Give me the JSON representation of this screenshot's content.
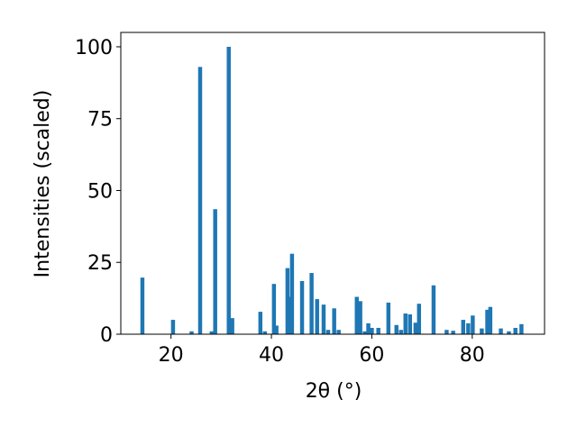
{
  "chart_data": {
    "type": "bar",
    "xlabel": "2θ (°)",
    "ylabel": "Intensities (scaled)",
    "color": "#1f77b4",
    "x": [
      14.3,
      20.4,
      24.1,
      25.8,
      28.1,
      28.8,
      31.5,
      32.2,
      37.8,
      38.7,
      40.5,
      41.0,
      43.2,
      43.5,
      44.1,
      46.1,
      48.0,
      49.1,
      50.4,
      51.3,
      52.5,
      53.4,
      57.0,
      57.7,
      58.6,
      59.3,
      60.0,
      61.3,
      63.3,
      64.9,
      65.8,
      66.7,
      67.6,
      68.7,
      69.4,
      72.3,
      74.9,
      76.2,
      78.2,
      79.2,
      80.1,
      81.9,
      83.0,
      83.6,
      85.7,
      87.3,
      88.6,
      89.8
    ],
    "values": [
      19.7,
      5,
      1,
      93,
      1,
      43.5,
      100,
      5.6,
      7.8,
      1,
      17.5,
      3,
      23,
      13,
      28,
      18.5,
      21.3,
      12.2,
      10.3,
      1.5,
      9,
      1.5,
      13,
      11.5,
      1,
      3.8,
      2.2,
      2.2,
      11,
      3.2,
      1.5,
      7.2,
      6.9,
      4,
      10.6,
      17,
      1.5,
      1.2,
      5,
      3.8,
      6.5,
      2,
      8.5,
      9.5,
      2,
      1,
      2.2,
      3.5
    ],
    "xlim": [
      10,
      94.4
    ],
    "xticks": [
      20,
      40,
      60,
      80
    ],
    "ylim": [
      0,
      105
    ],
    "yticks": [
      0,
      25,
      50,
      75,
      100
    ]
  }
}
